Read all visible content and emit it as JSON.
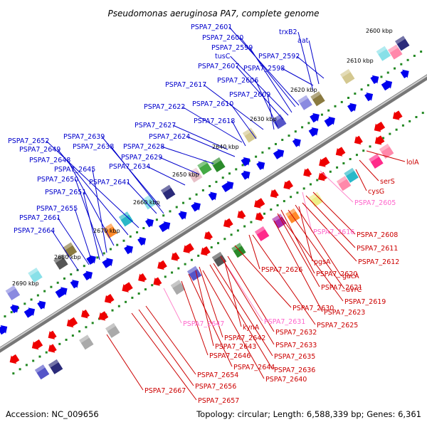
{
  "header": {
    "title": "Pseudomonas aeruginosa PA7, complete genome"
  },
  "footer": {
    "accession": "Accession: NC_009656",
    "summary": "Topology: circular; Length: 6,588,339 bp; Genes: 6,361"
  },
  "colors": {
    "plus_strand": "#0000ee",
    "minus_strand": "#ee0000",
    "rna_gene": "#ff88cc",
    "backbone": "#888888",
    "tick_dots": "#228822"
  },
  "map": {
    "ticks": [
      "2600 kbp",
      "2610 kbp",
      "2620 kbp",
      "2630 kbp",
      "2640 kbp",
      "2650 kbp",
      "2660 kbp",
      "2670 kbp",
      "2680 kbp",
      "2690 kbp"
    ],
    "plus_labels": [
      "PSPA7_2601",
      "trxB2",
      "PSPA7_2600",
      "aat",
      "PSPA7_2599",
      "tusC",
      "PSPA7_2592",
      "PSPA7_2607",
      "PSPA7_2598",
      "PSPA7_2606",
      "PSPA7_2617",
      "PSPA7_2609",
      "PSPA7_2610",
      "PSPA7_2622",
      "PSPA7_2618",
      "PSPA7_2627",
      "PSPA7_2624",
      "PSPA7_2639",
      "PSPA7_2652",
      "PSPA7_2638",
      "PSPA7_2628",
      "PSPA7_2649",
      "PSPA7_2629",
      "PSPA7_2648",
      "PSPA7_2634",
      "PSPA7_2645",
      "PSPA7_2650",
      "PSPA7_2641",
      "PSPA7_2651",
      "PSPA7_2655",
      "PSPA7_2661",
      "PSPA7_2664"
    ],
    "minus_labels": [
      "lolA",
      "serS",
      "cysG",
      "PSPA7_2605",
      "PSPA7_2616",
      "PSPA7_2608",
      "PSPA7_2611",
      "PSPA7_2612",
      "pgsA",
      "PSPA7_2626",
      "PSPA7_2620",
      "gacA",
      "PSPA7_2621",
      "uvrC",
      "PSPA7_2619",
      "PSPA7_2630",
      "PSPA7_2623",
      "PSPA7_2631",
      "PSPA7_2647",
      "PSPA7_2625",
      "kynA",
      "PSPA7_2632",
      "PSPA7_2642",
      "PSPA7_2643",
      "PSPA7_2633",
      "PSPA7_2646",
      "PSPA7_2635",
      "PSPA7_2644",
      "PSPA7_2636",
      "PSPA7_2654",
      "PSPA7_2640",
      "PSPA7_2656",
      "PSPA7_2667",
      "PSPA7_2657"
    ]
  }
}
